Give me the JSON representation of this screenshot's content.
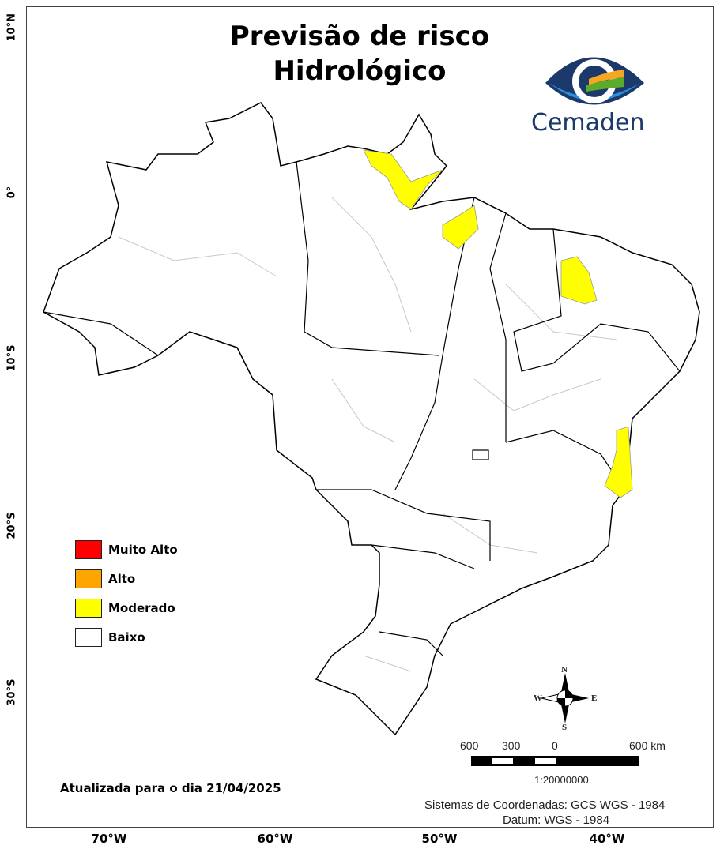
{
  "title": {
    "line1": "Previsão de risco",
    "line2": "Hidrológico"
  },
  "logo": {
    "text": "Cemaden"
  },
  "axes": {
    "latitude_labels": [
      "10°N",
      "0°",
      "10°S",
      "20°S",
      "30°S"
    ],
    "longitude_labels": [
      "70°W",
      "60°W",
      "50°W",
      "40°W"
    ]
  },
  "legend": {
    "items": [
      {
        "label": "Muito Alto",
        "color": "#ff0000"
      },
      {
        "label": "Alto",
        "color": "#ffa500"
      },
      {
        "label": "Moderado",
        "color": "#ffff00"
      },
      {
        "label": "Baixo",
        "color": "#ffffff"
      }
    ]
  },
  "compass": {
    "n": "N",
    "s": "S",
    "e": "E",
    "w": "W"
  },
  "scale_bar": {
    "labels": [
      "600",
      "300",
      "0",
      "600 km"
    ],
    "ratio": "1:20000000"
  },
  "updated": "Atualizada para o dia 21/04/2025",
  "coordinate_system": "Sistemas de Coordenadas: GCS WGS - 1984",
  "datum": "Datum: WGS - 1984",
  "colors": {
    "moderate": "#ffff00",
    "state_border": "#000000",
    "municipal_border": "#c8c8c8",
    "logo_dark": "#1b3a6b",
    "logo_light": "#2a8fdc"
  }
}
